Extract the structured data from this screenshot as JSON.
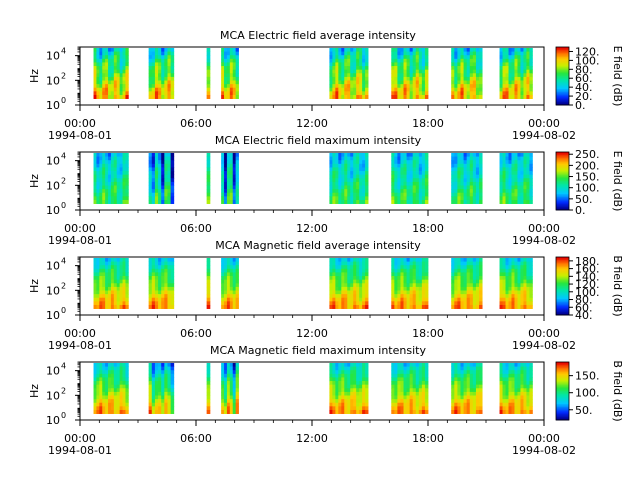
{
  "chart_data": [
    {
      "type": "heatmap",
      "title": "MCA  Electric field average intensity",
      "ylabel": "Hz",
      "colorbar_label": "E field (dB)",
      "colorbar_ticks": [
        "0.",
        "20.",
        "40.",
        "60.",
        "80.",
        "100.",
        "120."
      ],
      "colorbar_range": [
        0,
        130
      ],
      "y_ticks": [
        "10",
        "10",
        "10"
      ],
      "y_exponents": [
        "0",
        "2",
        "4"
      ],
      "y_range_log10": [
        0,
        4.7
      ],
      "time_ticks": [
        "00:00",
        "06:00",
        "12:00",
        "18:00",
        "00:00"
      ],
      "date_left": "1994-08-01",
      "date_right": "1994-08-02",
      "time_range_hours": [
        0,
        24
      ],
      "palette": "rainbow",
      "base_level": 0.55
    },
    {
      "type": "heatmap",
      "title": "MCA  Electric field maximum intensity",
      "ylabel": "Hz",
      "colorbar_label": "E field (dB)",
      "colorbar_ticks": [
        "0.",
        "50.",
        "100.",
        "150.",
        "200.",
        "250."
      ],
      "colorbar_range": [
        0,
        260
      ],
      "y_ticks": [
        "10",
        "10",
        "10"
      ],
      "y_exponents": [
        "0",
        "2",
        "4"
      ],
      "y_range_log10": [
        0,
        4.7
      ],
      "time_ticks": [
        "00:00",
        "06:00",
        "12:00",
        "18:00",
        "00:00"
      ],
      "date_left": "1994-08-01",
      "date_right": "1994-08-02",
      "time_range_hours": [
        0,
        24
      ],
      "palette": "rainbow",
      "base_level": 0.45
    },
    {
      "type": "heatmap",
      "title": "MCA  Magnetic field average intensity",
      "ylabel": "Hz",
      "colorbar_label": "B field (dB)",
      "colorbar_ticks": [
        "40.",
        "60.",
        "80.",
        "100.",
        "120.",
        "140.",
        "160.",
        "180."
      ],
      "colorbar_range": [
        40,
        190
      ],
      "y_ticks": [
        "10",
        "10",
        "10"
      ],
      "y_exponents": [
        "0",
        "2",
        "4"
      ],
      "y_range_log10": [
        0,
        4.7
      ],
      "time_ticks": [
        "00:00",
        "06:00",
        "12:00",
        "18:00",
        "00:00"
      ],
      "date_left": "1994-08-01",
      "date_right": "1994-08-02",
      "time_range_hours": [
        0,
        24
      ],
      "palette": "rainbow",
      "base_level": 0.6
    },
    {
      "type": "heatmap",
      "title": "MCA  Magnetic field maximum intensity",
      "ylabel": "Hz",
      "colorbar_label": "B field (dB)",
      "colorbar_ticks": [
        "50.",
        "100.",
        "150."
      ],
      "colorbar_range": [
        20,
        190
      ],
      "y_ticks": [
        "10",
        "10",
        "10"
      ],
      "y_exponents": [
        "0",
        "2",
        "4"
      ],
      "y_range_log10": [
        0,
        4.7
      ],
      "time_ticks": [
        "00:00",
        "06:00",
        "12:00",
        "18:00",
        "00:00"
      ],
      "date_left": "1994-08-01",
      "date_right": "1994-08-02",
      "time_range_hours": [
        0,
        24
      ],
      "palette": "rainbow",
      "base_level": 0.6
    }
  ],
  "data_intervals_hours": [
    [
      0.7,
      2.5
    ],
    [
      3.55,
      4.85
    ],
    [
      6.55,
      6.72
    ],
    [
      7.3,
      8.2
    ],
    [
      12.9,
      14.9
    ],
    [
      16.1,
      18.0
    ],
    [
      19.2,
      20.8
    ],
    [
      21.7,
      23.4
    ]
  ]
}
